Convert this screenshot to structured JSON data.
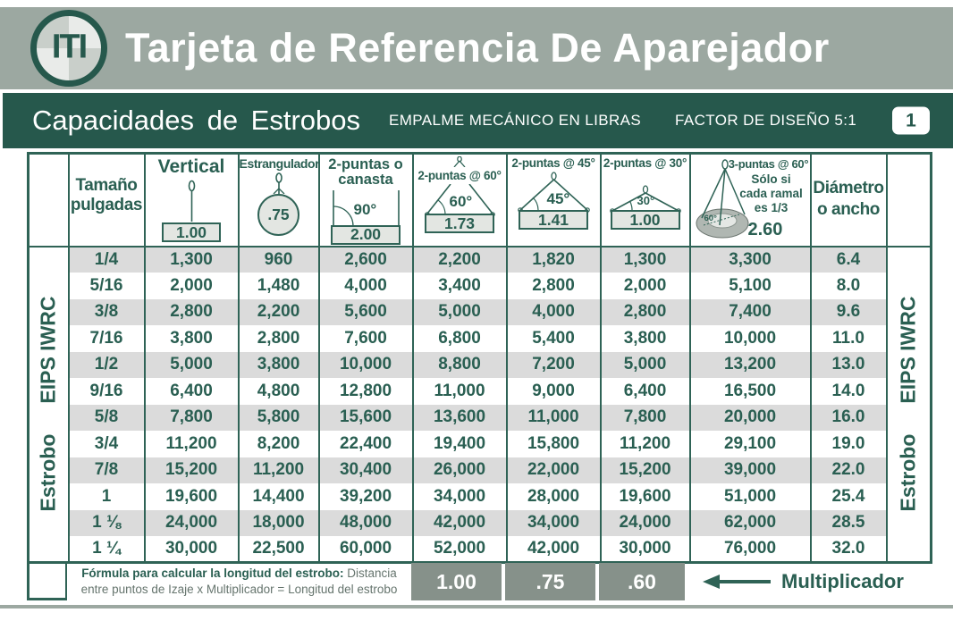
{
  "header": {
    "logo_text": "ITI",
    "title": "Tarjeta de Referencia De Aparejador"
  },
  "subheader": {
    "title": "Capacidades de Estrobos",
    "splice": "EMPALME MECÁNICO EN LIBRAS",
    "design_factor": "FACTOR DE DISEÑO 5:1",
    "page_number": "1"
  },
  "table": {
    "size_header": "Tamaño pulgadas",
    "side_label_1": "Estrobo",
    "side_label_2": "EIPS IWRC",
    "columns": [
      {
        "label": "Vertical",
        "multiplier": "1.00"
      },
      {
        "label": "Estrangulador",
        "multiplier": ".75"
      },
      {
        "label": "2-puntas o canasta",
        "angle": "90°",
        "multiplier": "2.00"
      },
      {
        "label": "2-puntas @ 60°",
        "angle": "60°",
        "multiplier": "1.73"
      },
      {
        "label": "2-puntas @ 45°",
        "angle": "45°",
        "multiplier": "1.41"
      },
      {
        "label": "2-puntas @ 30°",
        "angle": "30°",
        "multiplier": "1.00"
      },
      {
        "label": "3-puntas @ 60°",
        "note": [
          "Sólo si",
          "cada ramal",
          "es 1/3"
        ],
        "angle": "60°",
        "multiplier": "2.60"
      },
      {
        "label": "Diámetro o ancho"
      }
    ],
    "rows": [
      [
        "1/4",
        "1,300",
        "960",
        "2,600",
        "2,200",
        "1,820",
        "1,300",
        "3,300",
        "6.4"
      ],
      [
        "5/16",
        "2,000",
        "1,480",
        "4,000",
        "3,400",
        "2,800",
        "2,000",
        "5,100",
        "8.0"
      ],
      [
        "3/8",
        "2,800",
        "2,200",
        "5,600",
        "5,000",
        "4,000",
        "2,800",
        "7,400",
        "9.6"
      ],
      [
        "7/16",
        "3,800",
        "2,800",
        "7,600",
        "6,800",
        "5,400",
        "3,800",
        "10,000",
        "11.0"
      ],
      [
        "1/2",
        "5,000",
        "3,800",
        "10,000",
        "8,800",
        "7,200",
        "5,000",
        "13,200",
        "13.0"
      ],
      [
        "9/16",
        "6,400",
        "4,800",
        "12,800",
        "11,000",
        "9,000",
        "6,400",
        "16,500",
        "14.0"
      ],
      [
        "5/8",
        "7,800",
        "5,800",
        "15,600",
        "13,600",
        "11,000",
        "7,800",
        "20,000",
        "16.0"
      ],
      [
        "3/4",
        "11,200",
        "8,200",
        "22,400",
        "19,400",
        "15,800",
        "11,200",
        "29,100",
        "19.0"
      ],
      [
        "7/8",
        "15,200",
        "11,200",
        "30,400",
        "26,000",
        "22,000",
        "15,200",
        "39,000",
        "22.0"
      ],
      [
        "1",
        "19,600",
        "14,400",
        "39,200",
        "34,000",
        "28,000",
        "19,600",
        "51,000",
        "25.4"
      ],
      [
        "1 ⅛",
        "24,000",
        "18,000",
        "48,000",
        "42,000",
        "34,000",
        "24,000",
        "62,000",
        "28.5"
      ],
      [
        "1 ¼",
        "30,000",
        "22,500",
        "60,000",
        "52,000",
        "42,000",
        "30,000",
        "76,000",
        "32.0"
      ]
    ]
  },
  "footer": {
    "formula_bold": "Fórmula para calcular la longitud del estrobo:",
    "formula_tail": "Distancia",
    "formula_line2": "entre puntos de Izaje x Multiplicador = Longitud del estrobo",
    "multipliers": [
      "1.00",
      ".75",
      ".60"
    ],
    "arrow_label": "Multiplicador"
  },
  "colors": {
    "brand_green": "#26584c",
    "band_gray": "#9ca8a1",
    "row_alt_gray": "#dbdbdb",
    "multiplier_box_gray": "#86918a"
  }
}
